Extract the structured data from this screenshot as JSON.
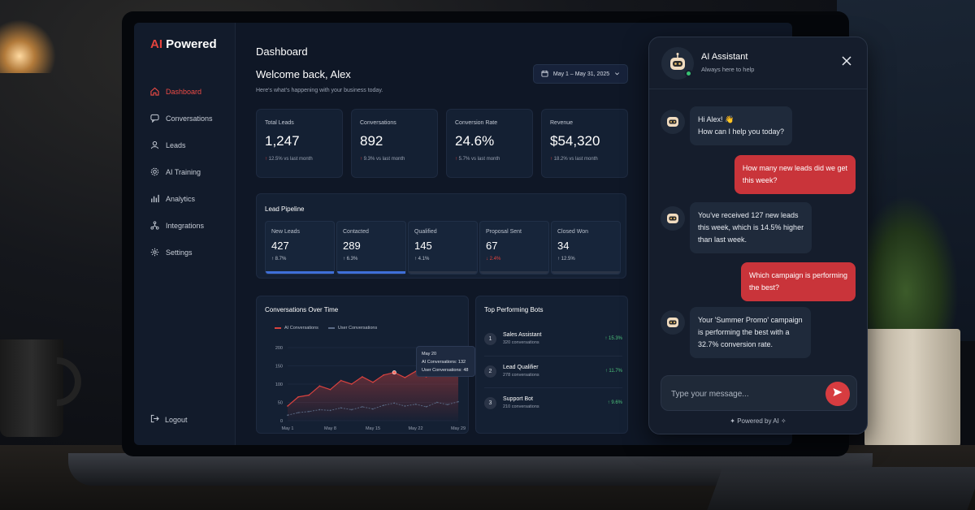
{
  "sidebar": {
    "brand_ai": "AI",
    "brand_rest": " Powered",
    "items": [
      {
        "label": "Dashboard",
        "icon": "home-icon"
      },
      {
        "label": "Conversations",
        "icon": "chat-bubble-icon"
      },
      {
        "label": "Leads",
        "icon": "user-icon"
      },
      {
        "label": "AI Training",
        "icon": "gear-icon"
      },
      {
        "label": "Analytics",
        "icon": "bar-chart-icon"
      },
      {
        "label": "Integrations",
        "icon": "network-icon"
      },
      {
        "label": "Settings",
        "icon": "settings-icon"
      }
    ],
    "logout": "Logout"
  },
  "header": {
    "title": "Dashboard",
    "welcome": "Welcome back, Alex",
    "subtitle": "Here's what's happening with your business today.",
    "date_range": "May 1 – May 31, 2025"
  },
  "stats": [
    {
      "label": "Total Leads",
      "value": "1,247",
      "change": "12.5%",
      "suffix": " vs last month"
    },
    {
      "label": "Conversations",
      "value": "892",
      "change": "9.3%",
      "suffix": " vs last month"
    },
    {
      "label": "Conversion Rate",
      "value": "24.6%",
      "change": "5.7%",
      "suffix": " vs last month"
    },
    {
      "label": "Revenue",
      "value": "$54,320",
      "change": "18.2%",
      "suffix": " vs last month"
    }
  ],
  "pipeline": {
    "title": "Lead Pipeline",
    "stages": [
      {
        "label": "New Leads",
        "value": "427",
        "change": "↑ 8.7%",
        "direction": "up",
        "progress": 1.0
      },
      {
        "label": "Contacted",
        "value": "289",
        "change": "↑ 6.3%",
        "direction": "up",
        "progress": 1.0
      },
      {
        "label": "Qualified",
        "value": "145",
        "change": "↑ 4.1%",
        "direction": "up",
        "progress": 0.0
      },
      {
        "label": "Proposal Sent",
        "value": "67",
        "change": "↓ 2.4%",
        "direction": "down",
        "progress": 0.0
      },
      {
        "label": "Closed Won",
        "value": "34",
        "change": "↑ 12.5%",
        "direction": "up",
        "progress": 0.0
      }
    ]
  },
  "chart": {
    "title": "Conversations Over Time",
    "legend_ai": "AI Conversations",
    "legend_user": "User Conversations",
    "tooltip_date": "May 20",
    "tooltip_ai": "AI Conversations: 132",
    "tooltip_user": "User Conversations: 48"
  },
  "chart_data": {
    "type": "line",
    "x": [
      "May 1",
      "May 3",
      "May 5",
      "May 7",
      "May 9",
      "May 11",
      "May 13",
      "May 15",
      "May 17",
      "May 19",
      "May 20",
      "May 22",
      "May 24",
      "May 26",
      "May 28",
      "May 30",
      "May 31"
    ],
    "xticks": [
      "May 1",
      "May 8",
      "May 15",
      "May 22",
      "May 29"
    ],
    "yticks": [
      0,
      50,
      100,
      150,
      200
    ],
    "ylim": [
      0,
      200
    ],
    "series": [
      {
        "name": "AI Conversations",
        "color": "#d8423f",
        "values": [
          40,
          65,
          70,
          95,
          85,
          110,
          100,
          120,
          105,
          125,
          132,
          118,
          135,
          120,
          140,
          130,
          150
        ]
      },
      {
        "name": "User Conversations",
        "color": "#5b6b86",
        "values": [
          15,
          22,
          25,
          30,
          28,
          35,
          30,
          38,
          32,
          42,
          48,
          40,
          45,
          38,
          50,
          44,
          52
        ]
      }
    ]
  },
  "bots": {
    "title": "Top Performing Bots",
    "items": [
      {
        "rank": "1",
        "name": "Sales Assistant",
        "sub": "320 conversations",
        "change": "↑ 15.3%"
      },
      {
        "rank": "2",
        "name": "Lead Qualifier",
        "sub": "278 conversations",
        "change": "↑ 11.7%"
      },
      {
        "rank": "3",
        "name": "Support Bot",
        "sub": "210 conversations",
        "change": "↑ 9.6%"
      }
    ]
  },
  "chat": {
    "title": "AI Assistant",
    "subtitle": "Always here to help",
    "messages": [
      {
        "from": "bot",
        "text1": "Hi Alex! 👋",
        "text2": "How can I help you today?"
      },
      {
        "from": "user",
        "text1": "How many new leads did we get",
        "text2": "this week?"
      },
      {
        "from": "bot",
        "text1": "You've received 127 new leads",
        "text2": "this week, which is 14.5% higher",
        "text3": "than last week."
      },
      {
        "from": "user",
        "text1": "Which campaign is performing",
        "text2": "the best?"
      },
      {
        "from": "bot",
        "text1": "Your 'Summer Promo' campaign",
        "text2": "is performing the best with a",
        "text3": "32.7% conversion rate."
      }
    ],
    "input_placeholder": "Type your message...",
    "powered_by": "Powered by AI"
  },
  "colors": {
    "accent": "#e5433d",
    "positive": "#4cc27b",
    "panel": "#142033"
  }
}
